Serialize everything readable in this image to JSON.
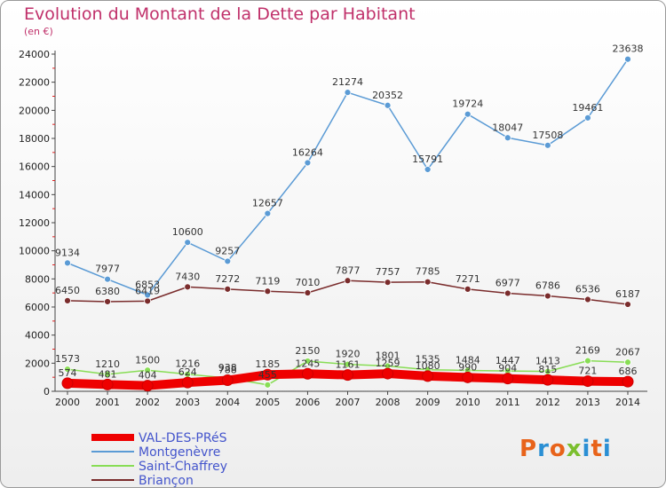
{
  "chart_data": {
    "type": "line",
    "title": "Evolution du Montant de la Dette par Habitant",
    "subtitle": "(en €)",
    "x": [
      2000,
      2001,
      2002,
      2003,
      2004,
      2005,
      2006,
      2007,
      2008,
      2009,
      2010,
      2011,
      2012,
      2013,
      2014
    ],
    "ylim": [
      0,
      24000
    ],
    "yticks": [
      0,
      2000,
      4000,
      6000,
      8000,
      10000,
      12000,
      14000,
      16000,
      18000,
      20000,
      22000,
      24000
    ],
    "grid": false,
    "legend_position": "bottom-left",
    "series": [
      {
        "name": "VAL-DES-PRéS",
        "color": "#ee0000",
        "values": [
          574,
          481,
          404,
          624,
          788,
          1185,
          1245,
          1161,
          1259,
          1080,
          990,
          904,
          815,
          721,
          686
        ]
      },
      {
        "name": "Montgenèvre",
        "color": "#5b9bd5",
        "values": [
          9134,
          7977,
          6853,
          10600,
          9257,
          12657,
          16264,
          21274,
          20352,
          15791,
          19724,
          18047,
          17508,
          19461,
          23638
        ]
      },
      {
        "name": "Saint-Chaffrey",
        "color": "#88dd55",
        "values": [
          1573,
          1210,
          1500,
          1216,
          938,
          455,
          2150,
          1920,
          1801,
          1535,
          1484,
          1447,
          1413,
          2169,
          2067
        ]
      },
      {
        "name": "Briançon",
        "color": "#7a2c2c",
        "values": [
          6450,
          6380,
          6419,
          7430,
          7272,
          7119,
          7010,
          7877,
          7757,
          7785,
          7271,
          6977,
          6786,
          6536,
          6187
        ]
      }
    ]
  },
  "branding": {
    "logo_text": "Proxiti",
    "logo_colors": [
      "#e8631a",
      "#2a8fd4",
      "#e8631a",
      "#7bbf2e",
      "#2a8fd4",
      "#e8631a",
      "#2a8fd4"
    ]
  }
}
